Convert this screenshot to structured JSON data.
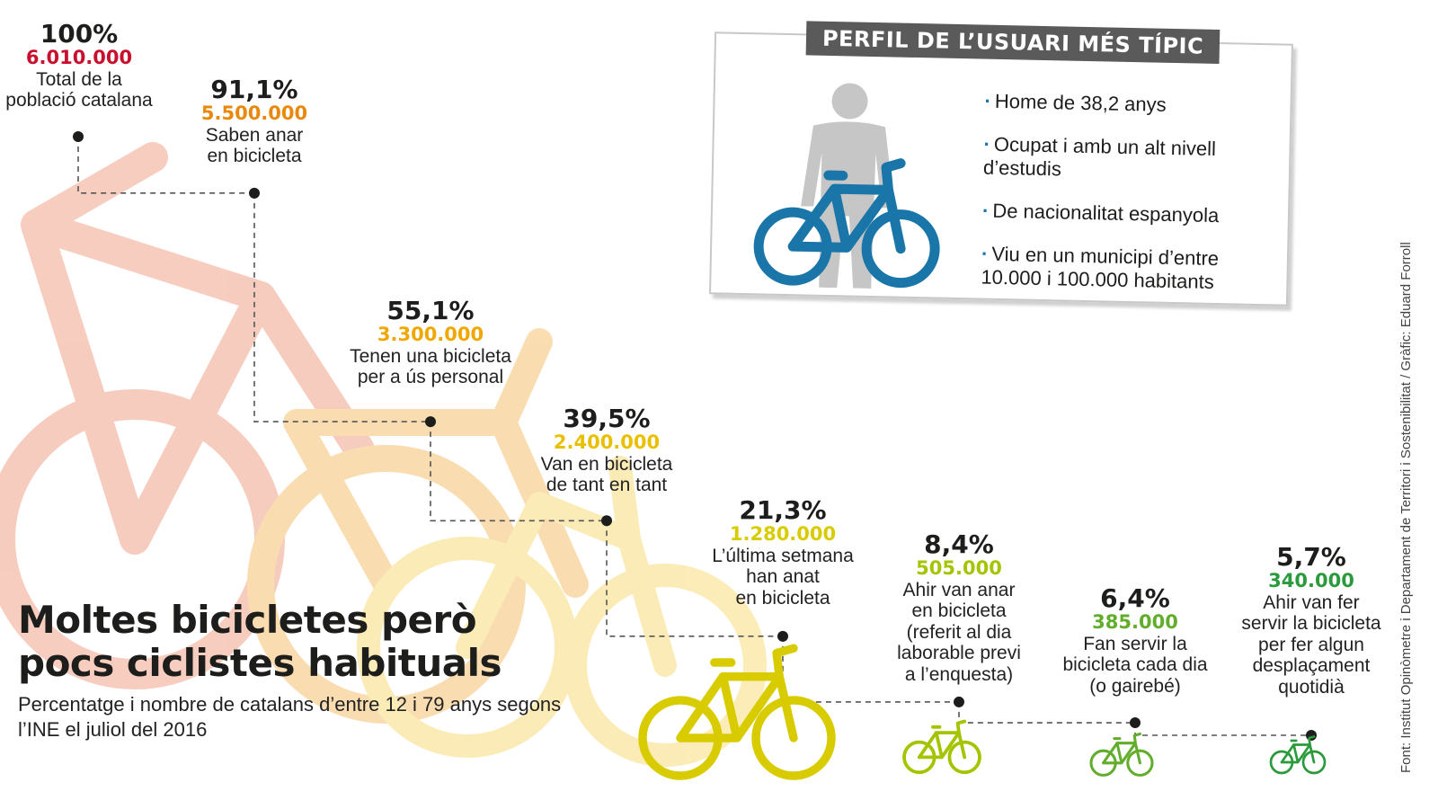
{
  "chart_data": {
    "type": "step",
    "title": "Moltes bicicletes però\npocs ciclistes habituals",
    "subtitle": "Percentatge i nombre de catalans d’entre 12 i 79 anys segons l’INE el juliol del 2016",
    "steps": [
      {
        "percent": 100.0,
        "pct_label": "100%",
        "count": 6010000,
        "count_label": "6.010.000",
        "label": "Total de la\npoblació catalana",
        "color": "#c8102e"
      },
      {
        "percent": 91.1,
        "pct_label": "91,1%",
        "count": 5500000,
        "count_label": "5.500.000",
        "label": "Saben anar\nen bicicleta",
        "color": "#e8890c"
      },
      {
        "percent": 55.1,
        "pct_label": "55,1%",
        "count": 3300000,
        "count_label": "3.300.000",
        "label": "Tenen una bicicleta\nper a ús personal",
        "color": "#f0a800"
      },
      {
        "percent": 39.5,
        "pct_label": "39,5%",
        "count": 2400000,
        "count_label": "2.400.000",
        "label": "Van en bicicleta\nde tant en tant",
        "color": "#e8c000"
      },
      {
        "percent": 21.3,
        "pct_label": "21,3%",
        "count": 1280000,
        "count_label": "1.280.000",
        "label": "L’última setmana\nhan anat\nen bicicleta",
        "color": "#d8cc00"
      },
      {
        "percent": 8.4,
        "pct_label": "8,4%",
        "count": 505000,
        "count_label": "505.000",
        "label": "Ahir van anar\nen bicicleta\n(referit al dia\nlaborable previ\na l’enquesta)",
        "color": "#a4c400"
      },
      {
        "percent": 6.4,
        "pct_label": "6,4%",
        "count": 385000,
        "count_label": "385.000",
        "label": "Fan servir la\nbicicleta cada dia\n(o gairebé)",
        "color": "#62ad2c"
      },
      {
        "percent": 5.7,
        "pct_label": "5,7%",
        "count": 340000,
        "count_label": "340.000",
        "label": "Ahir van fer\nservir la bicicleta\nper fer algun\ndesplaçament\nquotidià",
        "color": "#2a9a3c"
      }
    ]
  },
  "profile": {
    "title": "PERFIL DE L’USUARI MÉS TÍPIC",
    "items": [
      "Home de 38,2 anys",
      "Ocupat i amb un alt nivell d’estudis",
      "De nacionalitat espanyola",
      "Viu en un municipi d’entre 10.000 i 100.000 habitants"
    ],
    "icon": "person-with-bicycle-icon",
    "bike_color": "#1a75a8",
    "person_color": "#c6c6c6"
  },
  "source": "Font: Institut Opinòmetre i Departament de Territori i Sostenibilitat / Gràfic: Eduard Forroll"
}
